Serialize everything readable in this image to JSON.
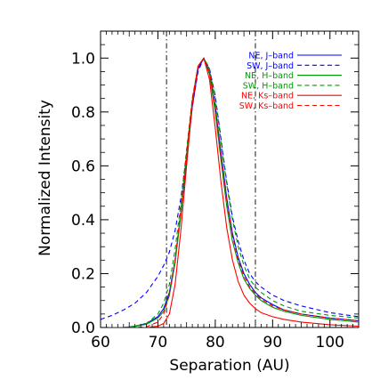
{
  "chart_data": {
    "type": "line",
    "xlabel": "Separation (AU)",
    "ylabel": "Normalized Intensity",
    "xlim": [
      60,
      105
    ],
    "ylim": [
      0.0,
      1.1
    ],
    "x_ticks": [
      60,
      70,
      80,
      90,
      100
    ],
    "y_ticks": [
      0.0,
      0.2,
      0.4,
      0.6,
      0.8,
      1.0
    ],
    "x_tick_labels": [
      "60",
      "70",
      "80",
      "90",
      "100"
    ],
    "y_tick_labels": [
      "0.0",
      "0.2",
      "0.4",
      "0.6",
      "0.8",
      "1.0"
    ],
    "grid": false,
    "legend_position": "top-right",
    "vertical_lines": [
      71.5,
      87.0
    ],
    "series": [
      {
        "name": "NE, J–band",
        "color": "#0000ff",
        "dash": "solid",
        "x": [
          60,
          64,
          66,
          68,
          70,
          71,
          72,
          73,
          74,
          75,
          76,
          77,
          78,
          79,
          80,
          81,
          82,
          83,
          84,
          85,
          86,
          87,
          88,
          90,
          92,
          95,
          100,
          105
        ],
        "y": [
          0.0,
          0.0,
          0.005,
          0.015,
          0.04,
          0.07,
          0.13,
          0.25,
          0.42,
          0.62,
          0.82,
          0.96,
          1.0,
          0.95,
          0.82,
          0.65,
          0.48,
          0.35,
          0.26,
          0.2,
          0.16,
          0.13,
          0.11,
          0.085,
          0.065,
          0.05,
          0.035,
          0.025
        ]
      },
      {
        "name": "SW, J–band",
        "color": "#0000ff",
        "dash": "dashed",
        "x": [
          60,
          62,
          64,
          66,
          68,
          70,
          71,
          72,
          73,
          74,
          75,
          76,
          77,
          78,
          79,
          80,
          81,
          82,
          83,
          84,
          85,
          86,
          87,
          88,
          90,
          92,
          95,
          100,
          105
        ],
        "y": [
          0.03,
          0.045,
          0.065,
          0.09,
          0.13,
          0.19,
          0.23,
          0.28,
          0.36,
          0.48,
          0.64,
          0.82,
          0.95,
          1.0,
          0.96,
          0.86,
          0.7,
          0.54,
          0.41,
          0.32,
          0.25,
          0.2,
          0.17,
          0.15,
          0.12,
          0.1,
          0.08,
          0.055,
          0.04
        ]
      },
      {
        "name": "NE, H–band",
        "color": "#009900",
        "dash": "solid",
        "x": [
          60,
          64,
          66,
          68,
          70,
          71,
          72,
          73,
          74,
          75,
          76,
          77,
          78,
          79,
          80,
          81,
          82,
          83,
          84,
          85,
          86,
          87,
          88,
          90,
          92,
          95,
          100,
          105
        ],
        "y": [
          0.0,
          0.0,
          0.004,
          0.012,
          0.035,
          0.06,
          0.12,
          0.24,
          0.42,
          0.64,
          0.84,
          0.97,
          1.0,
          0.94,
          0.8,
          0.62,
          0.45,
          0.32,
          0.24,
          0.18,
          0.145,
          0.12,
          0.1,
          0.075,
          0.06,
          0.045,
          0.03,
          0.02
        ]
      },
      {
        "name": "SW, H–band",
        "color": "#009900",
        "dash": "dashed",
        "x": [
          60,
          64,
          66,
          68,
          70,
          71,
          72,
          73,
          74,
          75,
          76,
          77,
          78,
          79,
          80,
          81,
          82,
          83,
          84,
          85,
          86,
          87,
          88,
          90,
          92,
          95,
          100,
          105
        ],
        "y": [
          0.0,
          0.0,
          0.005,
          0.015,
          0.05,
          0.09,
          0.16,
          0.29,
          0.46,
          0.66,
          0.85,
          0.97,
          1.0,
          0.96,
          0.85,
          0.69,
          0.53,
          0.4,
          0.3,
          0.23,
          0.18,
          0.15,
          0.13,
          0.1,
          0.08,
          0.06,
          0.045,
          0.035
        ]
      },
      {
        "name": "NE, Ks–band",
        "color": "#ff0000",
        "dash": "solid",
        "x": [
          60,
          66,
          68,
          70,
          71,
          72,
          73,
          74,
          75,
          76,
          77,
          78,
          79,
          80,
          81,
          82,
          83,
          84,
          85,
          86,
          87,
          88,
          90,
          92,
          95,
          100,
          105
        ],
        "y": [
          0.0,
          0.0,
          0.0,
          0.005,
          0.015,
          0.05,
          0.16,
          0.36,
          0.6,
          0.83,
          0.97,
          1.0,
          0.92,
          0.74,
          0.54,
          0.37,
          0.25,
          0.17,
          0.12,
          0.09,
          0.07,
          0.055,
          0.04,
          0.03,
          0.02,
          0.01,
          0.005
        ]
      },
      {
        "name": "SW, Ks–band",
        "color": "#ff0000",
        "dash": "dashed",
        "x": [
          60,
          66,
          68,
          70,
          71,
          72,
          73,
          74,
          75,
          76,
          77,
          78,
          79,
          80,
          81,
          82,
          83,
          84,
          85,
          86,
          87,
          88,
          90,
          92,
          95,
          100,
          105
        ],
        "y": [
          0.0,
          0.0,
          0.003,
          0.02,
          0.05,
          0.12,
          0.25,
          0.44,
          0.65,
          0.85,
          0.97,
          1.0,
          0.95,
          0.82,
          0.64,
          0.47,
          0.34,
          0.25,
          0.19,
          0.15,
          0.125,
          0.105,
          0.08,
          0.065,
          0.05,
          0.035,
          0.025
        ]
      }
    ]
  }
}
